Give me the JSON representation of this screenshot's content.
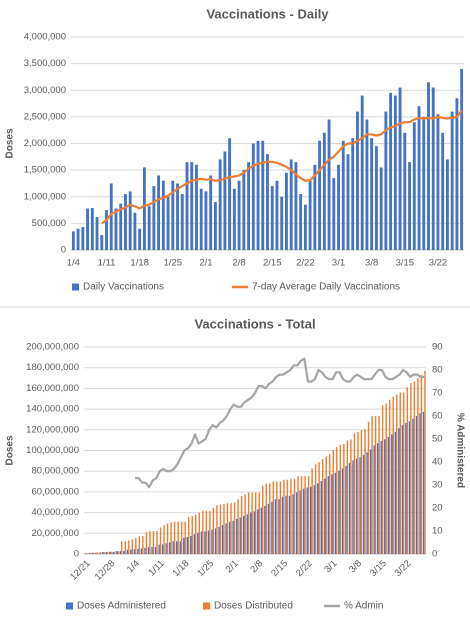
{
  "chart_data": [
    {
      "type": "bar",
      "title": "Vaccinations - Daily",
      "y_label": "Doses",
      "grid": true,
      "legend": "bottom",
      "categories": [
        "1/4",
        null,
        null,
        null,
        null,
        null,
        null,
        "1/11",
        null,
        null,
        null,
        null,
        null,
        null,
        "1/18",
        null,
        null,
        null,
        null,
        null,
        null,
        "1/25",
        null,
        null,
        null,
        null,
        null,
        null,
        "2/1",
        null,
        null,
        null,
        null,
        null,
        null,
        "2/8",
        null,
        null,
        null,
        null,
        null,
        null,
        "2/15",
        null,
        null,
        null,
        null,
        null,
        null,
        "2/22",
        null,
        null,
        null,
        null,
        null,
        null,
        "3/1",
        null,
        null,
        null,
        null,
        null,
        null,
        "3/8",
        null,
        null,
        null,
        null,
        null,
        null,
        "3/15",
        null,
        null,
        null,
        null,
        null,
        null,
        "3/22",
        null,
        null,
        null,
        null,
        null
      ],
      "ylim": [
        0,
        4000000
      ],
      "yticks": [
        0,
        {
          "value": 500000,
          "label": "500,000"
        },
        {
          "value": 1000000,
          "label": "1,000,000"
        },
        {
          "value": 1500000,
          "label": "1,500,000"
        },
        {
          "value": 2000000,
          "label": "2,000,000"
        },
        {
          "value": 2500000,
          "label": "2,500,000"
        },
        {
          "value": 3000000,
          "label": "3,000,000"
        },
        {
          "value": 3500000,
          "label": "3,500,000"
        },
        {
          "value": 4000000,
          "label": "4,000,000"
        }
      ],
      "series": [
        {
          "name": "Daily Vaccinations",
          "type": "bar",
          "color": "#4472c4",
          "values": [
            350000,
            400000,
            430000,
            780000,
            790000,
            620000,
            280000,
            750000,
            1250000,
            780000,
            870000,
            1050000,
            1100000,
            700000,
            400000,
            1550000,
            820000,
            1200000,
            1400000,
            1300000,
            1000000,
            1300000,
            1250000,
            1050000,
            1650000,
            1650000,
            1600000,
            1150000,
            1100000,
            1400000,
            900000,
            1700000,
            1850000,
            2100000,
            1150000,
            1300000,
            1500000,
            1650000,
            2000000,
            2050000,
            2050000,
            1800000,
            1200000,
            1300000,
            1000000,
            1450000,
            1700000,
            1650000,
            1050000,
            850000,
            1300000,
            1600000,
            2050000,
            2200000,
            2450000,
            1350000,
            1600000,
            2050000,
            1800000,
            2100000,
            2600000,
            2900000,
            2450000,
            2100000,
            1950000,
            1550000,
            2600000,
            2950000,
            2900000,
            3050000,
            2200000,
            1650000,
            2400000,
            2700000,
            2500000,
            3150000,
            3050000,
            2550000,
            2200000,
            1700000,
            2600000,
            2850000,
            3400000
          ]
        },
        {
          "name": "7-day Average Daily Vaccinations",
          "type": "line",
          "color": "#ed7d31",
          "values": [
            null,
            null,
            null,
            null,
            null,
            null,
            500000,
            560000,
            680000,
            720000,
            760000,
            800000,
            850000,
            820000,
            780000,
            830000,
            850000,
            900000,
            950000,
            980000,
            1020000,
            1080000,
            1150000,
            1200000,
            1250000,
            1300000,
            1320000,
            1340000,
            1320000,
            1330000,
            1300000,
            1310000,
            1340000,
            1370000,
            1380000,
            1400000,
            1450000,
            1530000,
            1580000,
            1620000,
            1640000,
            1660000,
            1650000,
            1640000,
            1600000,
            1560000,
            1500000,
            1420000,
            1350000,
            1300000,
            1310000,
            1400000,
            1500000,
            1600000,
            1700000,
            1750000,
            1850000,
            1950000,
            2000000,
            2000000,
            2050000,
            2100000,
            2170000,
            2170000,
            2150000,
            2170000,
            2250000,
            2300000,
            2330000,
            2380000,
            2400000,
            2400000,
            2450000,
            2480000,
            2470000,
            2480000,
            2470000,
            2500000,
            2480000,
            2470000,
            2480000,
            2500000,
            2620000
          ]
        }
      ]
    },
    {
      "type": "bar",
      "title": "Vaccinations - Total",
      "y_label": "Doses",
      "y2_label": "% Administered",
      "grid": true,
      "legend": "bottom",
      "categories": [
        "12/21",
        null,
        null,
        null,
        null,
        null,
        null,
        "12/28",
        null,
        null,
        null,
        null,
        null,
        null,
        "1/4",
        null,
        null,
        null,
        null,
        null,
        null,
        "1/11",
        null,
        null,
        null,
        null,
        null,
        null,
        "1/18",
        null,
        null,
        null,
        null,
        null,
        null,
        "1/25",
        null,
        null,
        null,
        null,
        null,
        null,
        "2/1",
        null,
        null,
        null,
        null,
        null,
        null,
        "2/8",
        null,
        null,
        null,
        null,
        null,
        null,
        "2/15",
        null,
        null,
        null,
        null,
        null,
        null,
        "2/22",
        null,
        null,
        null,
        null,
        null,
        null,
        "3/1",
        null,
        null,
        null,
        null,
        null,
        null,
        "3/8",
        null,
        null,
        null,
        null,
        null,
        null,
        "3/15",
        null,
        null,
        null,
        null,
        null,
        null,
        "3/22",
        null,
        null,
        null,
        null,
        null
      ],
      "ylim": [
        0,
        200000000
      ],
      "yticks": [
        0,
        {
          "value": 20000000,
          "label": "20,000,000"
        },
        {
          "value": 40000000,
          "label": "40,000,000"
        },
        {
          "value": 60000000,
          "label": "60,000,000"
        },
        {
          "value": 80000000,
          "label": "80,000,000"
        },
        {
          "value": 100000000,
          "label": "100,000,000"
        },
        {
          "value": 120000000,
          "label": "120,000,000"
        },
        {
          "value": 140000000,
          "label": "140,000,000"
        },
        {
          "value": 160000000,
          "label": "160,000,000"
        },
        {
          "value": 180000000,
          "label": "180,000,000"
        },
        {
          "value": 200000000,
          "label": "200,000,000"
        }
      ],
      "y2lim": [
        0,
        90
      ],
      "y2ticks": [
        0,
        10,
        20,
        30,
        40,
        50,
        60,
        70,
        80,
        90
      ],
      "series": [
        {
          "name": "Doses Administered",
          "type": "bar",
          "color": "#4472c4",
          "values": [
            600000,
            600000,
            1000000,
            1000000,
            1100000,
            1900000,
            1900000,
            2100000,
            2100000,
            2800000,
            2800000,
            2800000,
            4200000,
            4200000,
            4600000,
            4800000,
            5300000,
            5900000,
            6700000,
            6700000,
            6700000,
            9000000,
            9300000,
            10300000,
            11100000,
            12300000,
            12300000,
            12300000,
            15600000,
            16500000,
            17500000,
            19100000,
            20500000,
            21800000,
            21800000,
            22700000,
            23500000,
            24700000,
            26200000,
            27900000,
            29600000,
            31100000,
            32200000,
            33800000,
            35200000,
            36800000,
            38400000,
            40000000,
            41200000,
            43200000,
            44800000,
            46400000,
            48400000,
            50600000,
            52900000,
            52900000,
            55200000,
            56300000,
            56300000,
            57700000,
            59600000,
            61300000,
            63100000,
            64200000,
            65000000,
            66500000,
            68300000,
            70500000,
            72800000,
            75200000,
            76900000,
            78600000,
            80500000,
            82600000,
            85000000,
            87900000,
            90400000,
            92100000,
            93700000,
            95700000,
            98200000,
            101100000,
            105000000,
            107100000,
            109100000,
            110700000,
            113000000,
            115700000,
            118100000,
            121400000,
            124500000,
            126500000,
            128200000,
            130500000,
            133300000,
            136000000,
            137500000
          ]
        },
        {
          "name": "Doses Distributed",
          "type": "bar",
          "color": "#ed7d31",
          "values": [
            1000000,
            1200000,
            1500000,
            1800000,
            1800000,
            1800000,
            2000000,
            2200000,
            2400000,
            2600000,
            12400000,
            12400000,
            13000000,
            14000000,
            15400000,
            17000000,
            17300000,
            21400000,
            22100000,
            22100000,
            22100000,
            25500000,
            27700000,
            29400000,
            30600000,
            31200000,
            31200000,
            31200000,
            31200000,
            35900000,
            36700000,
            37900000,
            39900000,
            41400000,
            41400000,
            41400000,
            44400000,
            47200000,
            47800000,
            48400000,
            49200000,
            49200000,
            49900000,
            52700000,
            55900000,
            57500000,
            59300000,
            59300000,
            59300000,
            59300000,
            66000000,
            68000000,
            68300000,
            70100000,
            70100000,
            70100000,
            71700000,
            71700000,
            72400000,
            72400000,
            75200000,
            75200000,
            75200000,
            75200000,
            82600000,
            86600000,
            88600000,
            91700000,
            94300000,
            96400000,
            100600000,
            103200000,
            105500000,
            106300000,
            109800000,
            110700000,
            116400000,
            118000000,
            119800000,
            120800000,
            127900000,
            133300000,
            133300000,
            133300000,
            143500000,
            145400000,
            149000000,
            152000000,
            154200000,
            156000000,
            156000000,
            161000000,
            165000000,
            167000000,
            170000000,
            173000000,
            177000000
          ]
        },
        {
          "name": "% Admin",
          "type": "line",
          "axis": "y2",
          "color": "#a5a5a5",
          "values": [
            null,
            null,
            null,
            null,
            null,
            null,
            null,
            null,
            null,
            null,
            null,
            null,
            null,
            null,
            33,
            33,
            31,
            31,
            29,
            32,
            33,
            36,
            37,
            36,
            36,
            37,
            39,
            42,
            45,
            46,
            48,
            52,
            48,
            49,
            50,
            54,
            56,
            55,
            57,
            58,
            60,
            63,
            65,
            64,
            64,
            66,
            67,
            68,
            70,
            73,
            73,
            72,
            74,
            75,
            77,
            78,
            78,
            79,
            80,
            82,
            82,
            84,
            85,
            75,
            75,
            76,
            80,
            79,
            77,
            76,
            76,
            79,
            79,
            76,
            75,
            75,
            77,
            78,
            77,
            76,
            76,
            76,
            78,
            80,
            80,
            77,
            76,
            76,
            77,
            78,
            80,
            79,
            77,
            78,
            78,
            77,
            77
          ]
        }
      ]
    }
  ]
}
